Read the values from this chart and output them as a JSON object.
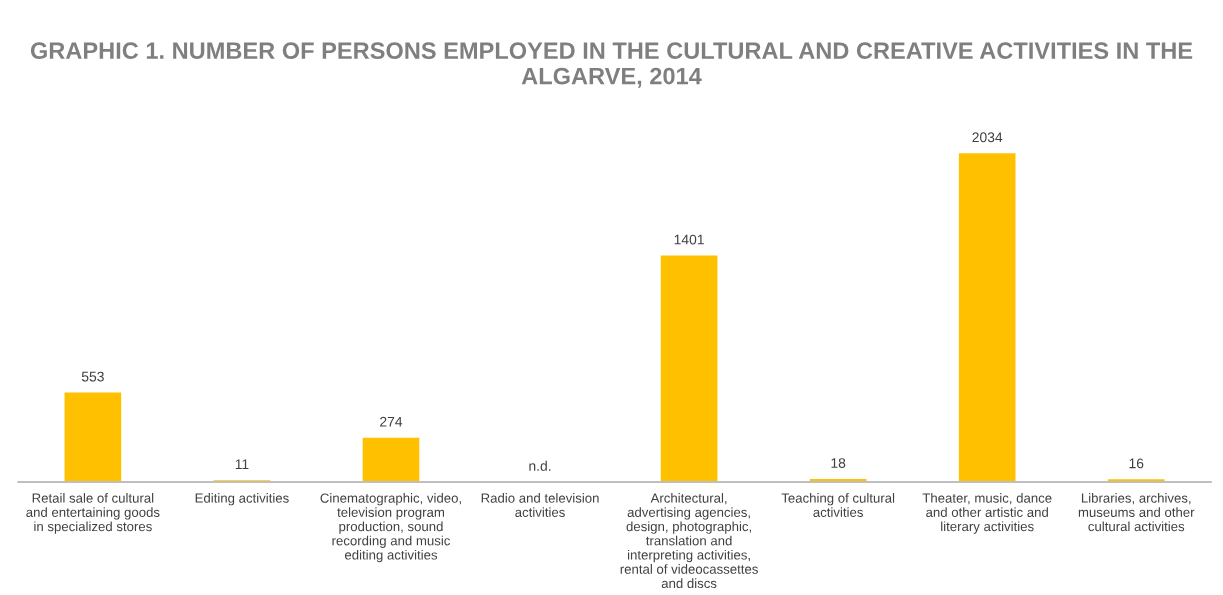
{
  "chart_data": {
    "type": "bar",
    "title": "GRAPHIC 1. NUMBER OF PERSONS EMPLOYED IN THE CULTURAL AND CREATIVE ACTIVITIES IN THE ALGARVE, 2014",
    "categories": [
      "Retail sale of cultural and entertaining goods in specialized stores",
      "Editing activities",
      "Cinematographic, video, television program production, sound recording and music editing activities",
      "Radio and television activities",
      "Architectural, advertising agencies, design, photographic, translation and interpreting activities, rental of videocassettes and discs",
      "Teaching of cultural activities",
      "Theater, music, dance and other artistic and literary activities",
      "Libraries, archives, museums and other cultural activities"
    ],
    "values": [
      553,
      11,
      274,
      null,
      1401,
      18,
      2034,
      16
    ],
    "value_labels": [
      "553",
      "11",
      "274",
      "n.d.",
      "1401",
      "18",
      "2034",
      "16"
    ],
    "color": "#ffc000",
    "grid": false,
    "legend": false,
    "tick_labels": "x"
  }
}
